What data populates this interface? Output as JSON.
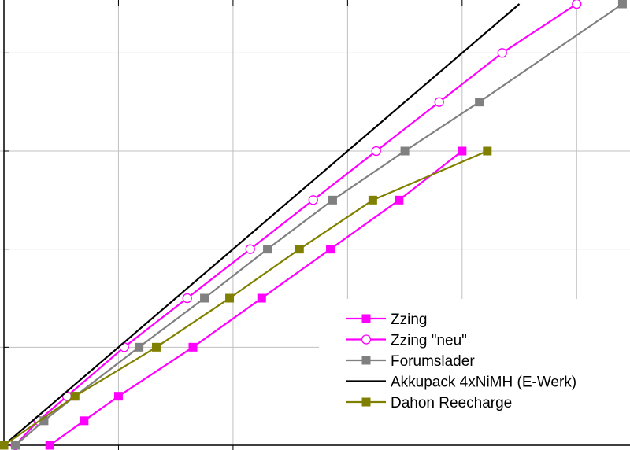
{
  "chart_data": {
    "type": "line",
    "title": "",
    "xlabel": "",
    "ylabel": "",
    "xlim": [
      0,
      5.5
    ],
    "ylim": [
      0,
      4.5
    ],
    "grid": true,
    "legend_position": "bottom-right",
    "series": [
      {
        "name": "Zzing",
        "color": "#ff00ff",
        "marker": "filled-square",
        "x": [
          0.4,
          0.7,
          1.0,
          1.65,
          2.25,
          2.85,
          3.45,
          4.0
        ],
        "y": [
          0.0,
          0.25,
          0.5,
          1.0,
          1.5,
          2.0,
          2.5,
          3.0
        ]
      },
      {
        "name": "Zzing \"neu\"",
        "color": "#ff00ff",
        "marker": "hollow-circle",
        "x": [
          0.1,
          0.3,
          0.55,
          1.05,
          1.6,
          2.15,
          2.7,
          3.25,
          3.8,
          4.35,
          5.0
        ],
        "y": [
          0.0,
          0.25,
          0.5,
          1.0,
          1.5,
          2.0,
          2.5,
          3.0,
          3.5,
          4.0,
          4.5
        ]
      },
      {
        "name": "Forumslader",
        "color": "#808080",
        "marker": "filled-square",
        "x": [
          0.1,
          0.35,
          0.62,
          1.18,
          1.75,
          2.3,
          2.87,
          3.5,
          4.15,
          5.4
        ],
        "y": [
          0.0,
          0.25,
          0.5,
          1.0,
          1.5,
          2.0,
          2.5,
          3.0,
          3.5,
          4.5
        ]
      },
      {
        "name": "Akkupack 4xNiMH (E-Werk)",
        "color": "#000000",
        "marker": "none",
        "x": [
          0.0,
          4.5
        ],
        "y": [
          0.0,
          4.5
        ]
      },
      {
        "name": "Dahon Reecharge",
        "color": "#808000",
        "marker": "filled-square",
        "x": [
          0.0,
          0.62,
          1.33,
          1.97,
          2.58,
          3.22,
          4.22
        ],
        "y": [
          0.0,
          0.5,
          1.0,
          1.5,
          2.0,
          2.5,
          3.0
        ]
      }
    ]
  }
}
